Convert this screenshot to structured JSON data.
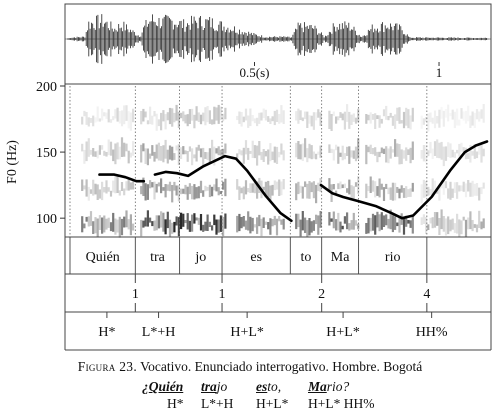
{
  "waveform": {
    "time_labels": [
      {
        "t": 0.5,
        "label": "0.5(s)"
      },
      {
        "t": 1.0,
        "label": "1"
      }
    ]
  },
  "chart_data": {
    "type": "line",
    "ylabel": "F0 (Hz)",
    "ylim": [
      85,
      200
    ],
    "yticks": [
      {
        "value": 200,
        "label": "200"
      },
      {
        "value": 150,
        "label": "150"
      },
      {
        "value": 100,
        "label": "100"
      }
    ],
    "duration_s": 1.13,
    "series": [
      {
        "points": [
          [
            0.08,
            133
          ],
          [
            0.12,
            133
          ],
          [
            0.15,
            131
          ],
          [
            0.18,
            128
          ],
          [
            0.2,
            128
          ]
        ]
      },
      {
        "points": [
          [
            0.23,
            133
          ],
          [
            0.26,
            135
          ],
          [
            0.29,
            134
          ],
          [
            0.32,
            132
          ],
          [
            0.36,
            139
          ],
          [
            0.42,
            147
          ],
          [
            0.45,
            145
          ],
          [
            0.48,
            136
          ],
          [
            0.53,
            117
          ],
          [
            0.57,
            104
          ],
          [
            0.6,
            98
          ]
        ]
      },
      {
        "points": [
          [
            0.68,
            125
          ],
          [
            0.71,
            119
          ],
          [
            0.74,
            116
          ],
          [
            0.78,
            113
          ],
          [
            0.83,
            109
          ],
          [
            0.87,
            104
          ],
          [
            0.9,
            100
          ],
          [
            0.93,
            102
          ],
          [
            0.98,
            116
          ],
          [
            1.03,
            136
          ],
          [
            1.07,
            150
          ],
          [
            1.1,
            155
          ],
          [
            1.13,
            158
          ]
        ]
      }
    ]
  },
  "tiers": {
    "syllables": [
      {
        "label": "Quién",
        "start": 0.0,
        "end": 0.177
      },
      {
        "label": "tra",
        "start": 0.177,
        "end": 0.297
      },
      {
        "label": "jo",
        "start": 0.297,
        "end": 0.412
      },
      {
        "label": "es",
        "start": 0.412,
        "end": 0.597
      },
      {
        "label": "to",
        "start": 0.597,
        "end": 0.682
      },
      {
        "label": "Ma",
        "start": 0.682,
        "end": 0.782
      },
      {
        "label": "rio",
        "start": 0.782,
        "end": 0.967
      }
    ],
    "breaks": [
      {
        "t": 0.177,
        "label": "1"
      },
      {
        "t": 0.412,
        "label": "1"
      },
      {
        "t": 0.682,
        "label": "2"
      },
      {
        "t": 0.967,
        "label": "4"
      }
    ],
    "tones": [
      {
        "t": 0.1,
        "label": "H*"
      },
      {
        "t": 0.24,
        "label": "L*+H"
      },
      {
        "t": 0.48,
        "label": "H+L*"
      },
      {
        "t": 0.74,
        "label": "H+L*"
      },
      {
        "t": 0.98,
        "label": "HH%"
      }
    ]
  },
  "caption": {
    "figure_label": "Figura 23.",
    "text": " Vocativo. Enunciado interrogativo. Hombre. Bogotá"
  },
  "example": {
    "words": [
      {
        "pre": "¿",
        "bold": "Quién",
        "rest": ""
      },
      {
        "pre": "",
        "bold": "tra",
        "rest": "jo"
      },
      {
        "pre": "",
        "bold": "es",
        "rest": "to,"
      },
      {
        "pre": "",
        "bold": "Ma",
        "rest": "rio?"
      }
    ],
    "tones": [
      "H*",
      "L*+H",
      "H+L*",
      "H+L* HH%"
    ]
  }
}
